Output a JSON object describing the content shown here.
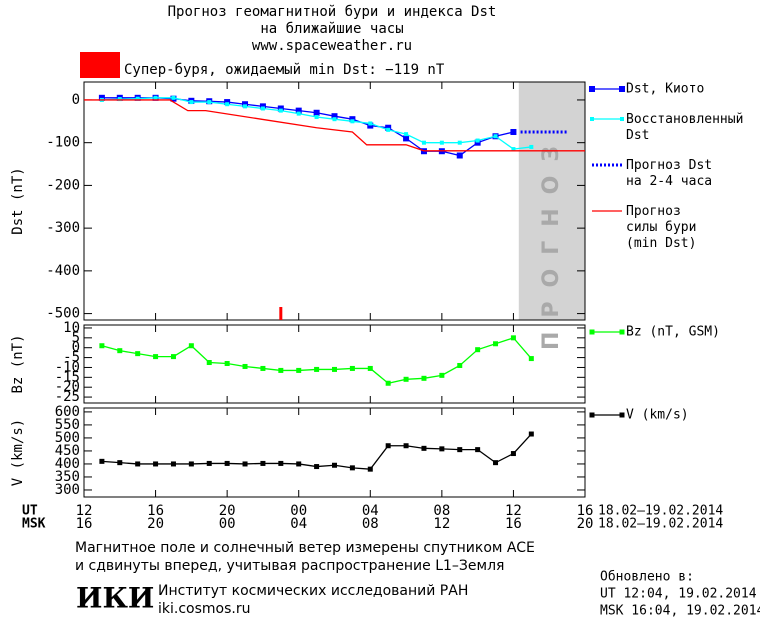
{
  "header": {
    "title_lines": [
      "Прогноз геомагнитной бури и индекса Dst",
      "на ближайшие часы",
      "www.spaceweather.ru"
    ],
    "alert": {
      "color": "#ff0000",
      "text": "Супер-буря, ожидаемый min Dst: −119 nT"
    }
  },
  "x_axis": {
    "xlim": [
      0,
      28
    ],
    "ut_label": "UT",
    "msk_label": "MSK",
    "xticks": [
      {
        "value": 0,
        "label": "12"
      },
      {
        "value": 4,
        "label": "16"
      },
      {
        "value": 8,
        "label": "20"
      },
      {
        "value": 12,
        "label": "00"
      },
      {
        "value": 16,
        "label": "04"
      },
      {
        "value": 20,
        "label": "08"
      },
      {
        "value": 24,
        "label": "12"
      },
      {
        "value": 28,
        "label": "16"
      }
    ],
    "msk_ticks": [
      {
        "value": 0,
        "label": "16"
      },
      {
        "value": 4,
        "label": "20"
      },
      {
        "value": 8,
        "label": "00"
      },
      {
        "value": 12,
        "label": "04"
      },
      {
        "value": 16,
        "label": "08"
      },
      {
        "value": 20,
        "label": "12"
      },
      {
        "value": 24,
        "label": "16"
      },
      {
        "value": 28,
        "label": "20"
      }
    ],
    "ut_dates": "18.02–19.02.2014",
    "msk_dates": "18.02–19.02.2014"
  },
  "chart_data": [
    {
      "type": "line",
      "ylabel": "Dst (nT)",
      "ylim": [
        -515,
        42
      ],
      "yticks": [
        0,
        -100,
        -200,
        -300,
        -400,
        -500
      ],
      "forecast_zone": {
        "x": [
          24.3,
          28
        ],
        "label": "ПРОГНОЗ",
        "color": "#d3d3d3"
      },
      "event_marker": {
        "x": 11,
        "color": "#ff0000"
      },
      "series": [
        {
          "name": "Dst, Киото",
          "color": "#0000ff",
          "style": "solid",
          "marker": 6,
          "x": [
            1,
            2,
            3,
            4,
            5,
            6,
            7,
            8,
            9,
            10,
            11,
            12,
            13,
            14,
            15,
            16,
            17,
            18,
            19,
            20,
            21,
            22,
            23,
            24
          ],
          "values": [
            5,
            5,
            5,
            5,
            3,
            -2,
            -3,
            -5,
            -10,
            -15,
            -20,
            -25,
            -30,
            -38,
            -45,
            -60,
            -65,
            -90,
            -120,
            -120,
            -130,
            -100,
            -85,
            -75
          ]
        },
        {
          "name": "Восстановленный\nDst",
          "color": "#00ffff",
          "style": "solid",
          "marker": 4,
          "x": [
            1,
            2,
            3,
            4,
            5,
            6,
            7,
            8,
            9,
            10,
            11,
            12,
            13,
            14,
            15,
            16,
            17,
            18,
            19,
            20,
            21,
            22,
            23,
            24,
            25
          ],
          "values": [
            0,
            2,
            3,
            5,
            5,
            -5,
            -5,
            -10,
            -15,
            -20,
            -25,
            -32,
            -40,
            -45,
            -50,
            -55,
            -70,
            -80,
            -100,
            -100,
            -100,
            -95,
            -85,
            -115,
            -110
          ]
        },
        {
          "name": "Прогноз Dst\nна 2-4 часа",
          "color": "#0000ff",
          "style": "dotted",
          "marker": 0,
          "x": [
            24.4,
            27
          ],
          "values": [
            -75,
            -75
          ]
        },
        {
          "name": "Прогноз\nсилы бури\n(min Dst)",
          "color": "#ff0000",
          "style": "solid",
          "marker": 0,
          "x": [
            0,
            4.8,
            5.8,
            6.8,
            9.9,
            13,
            15,
            15.8,
            18,
            19,
            28
          ],
          "values": [
            0,
            0,
            -25,
            -25,
            -45,
            -65,
            -75,
            -105,
            -105,
            -119,
            -119
          ]
        }
      ]
    },
    {
      "type": "line",
      "ylabel": "Bz (nT)",
      "ylim": [
        -28,
        11.5
      ],
      "yticks": [
        10,
        5,
        0,
        -5,
        -10,
        -15,
        -20,
        -25
      ],
      "series": [
        {
          "name": "Bz (nT, GSM)",
          "color": "#00ff00",
          "style": "solid",
          "marker": 5,
          "x": [
            1,
            2,
            3,
            4,
            5,
            6,
            7,
            8,
            9,
            10,
            11,
            12,
            13,
            14,
            15,
            16,
            17,
            18,
            19,
            20,
            21,
            22,
            23,
            24,
            25
          ],
          "values": [
            1,
            -1.5,
            -3,
            -4.5,
            -4.5,
            1,
            -7.5,
            -8,
            -9.5,
            -10.5,
            -11.5,
            -11.5,
            -11,
            -11,
            -10.5,
            -10.5,
            -18,
            -16,
            -15.5,
            -14,
            -9,
            -1,
            2,
            5,
            -5.5
          ]
        }
      ]
    },
    {
      "type": "line",
      "ylabel": "V (km/s)",
      "ylim": [
        273,
        615
      ],
      "yticks": [
        300,
        350,
        400,
        450,
        500,
        550,
        600
      ],
      "series": [
        {
          "name": "V (km/s)",
          "color": "#000000",
          "style": "solid",
          "marker": 5,
          "x": [
            1,
            2,
            3,
            4,
            5,
            6,
            7,
            8,
            9,
            10,
            11,
            12,
            13,
            14,
            15,
            16,
            17,
            18,
            19,
            20,
            21,
            22,
            23,
            24,
            25
          ],
          "values": [
            410,
            405,
            400,
            400,
            400,
            400,
            402,
            402,
            400,
            402,
            402,
            400,
            390,
            395,
            385,
            380,
            470,
            470,
            460,
            458,
            455,
            455,
            405,
            440,
            515
          ]
        }
      ]
    }
  ],
  "footer": {
    "note_lines": [
      "Магнитное поле и солнечный ветер измерены спутником ACE",
      "и сдвинуты вперед, учитывая распространение L1–Земля"
    ],
    "logo": "ИКИ",
    "institute": "Институт космических исследований РАН",
    "site": "iki.cosmos.ru",
    "updated_lines": [
      "Обновлено в:",
      "UT  12:04, 19.02.2014",
      "MSK 16:04, 19.02.2014"
    ]
  }
}
